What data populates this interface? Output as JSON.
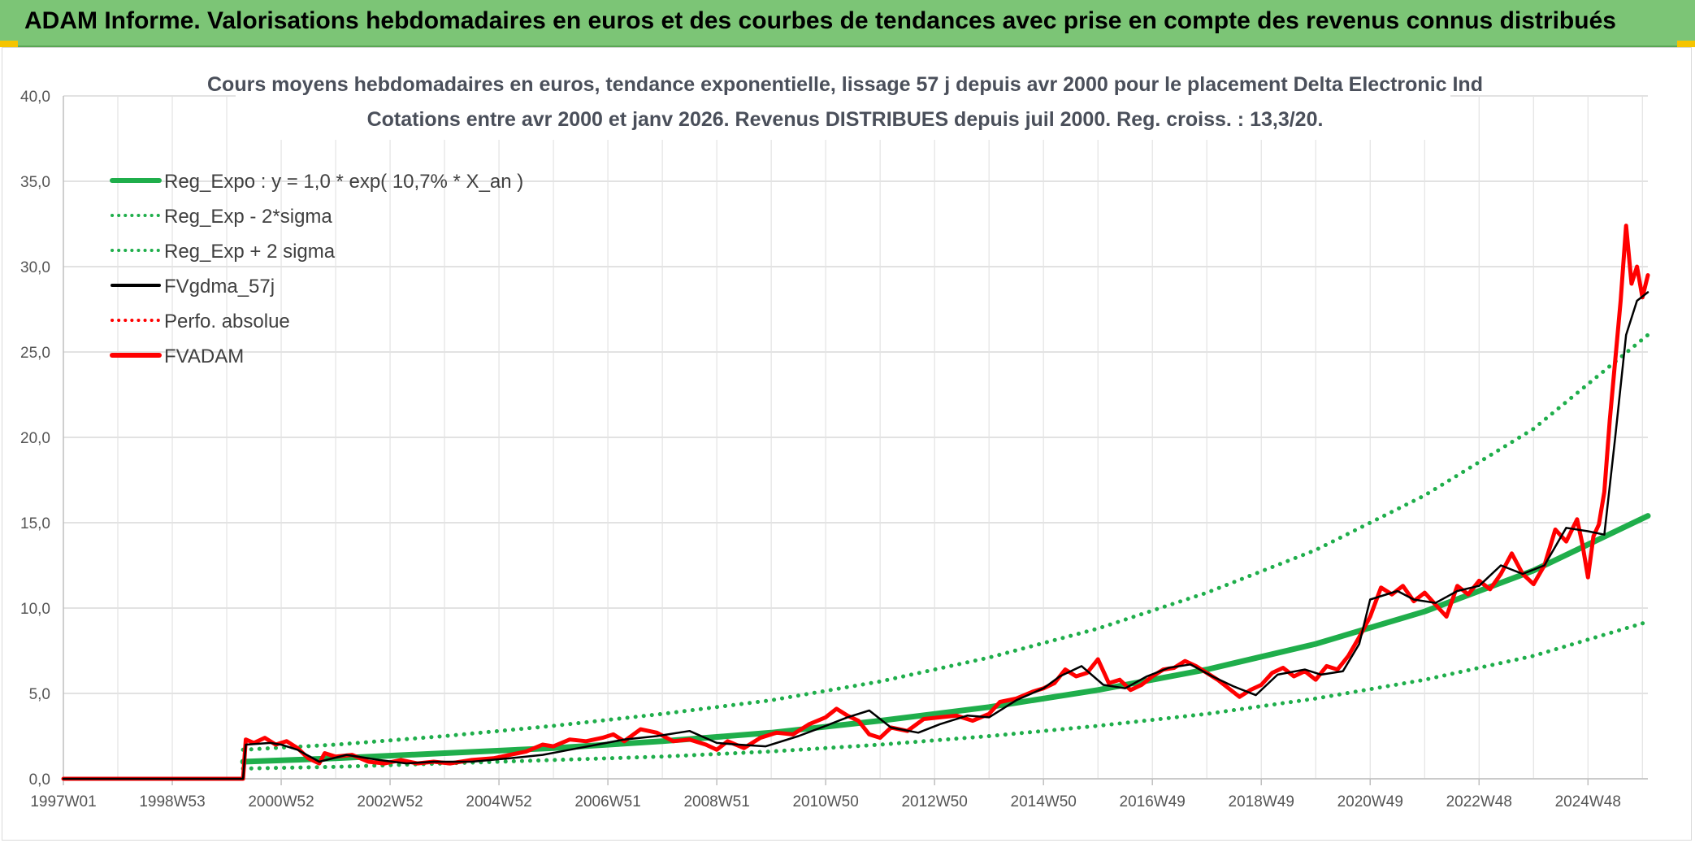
{
  "header": {
    "title": "ADAM Informe. Valorisations hebdomadaires en euros et des courbes de tendances avec prise en compte des revenus connus distribués"
  },
  "colors": {
    "header_bg": "#7cc576",
    "corner_accent": "#f5c400",
    "reg_expo": "#1fae4b",
    "fvgdma": "#000000",
    "fvadam": "#ff0000"
  },
  "chart_data": {
    "type": "line",
    "title": "Cours moyens hebdomadaires en euros, tendance exponentielle, lissage 57 j depuis avr 2000 pour le placement Delta Electronic Ind",
    "subtitle": "Cotations entre avr 2000 et janv 2026. Revenus DISTRIBUES depuis juil 2000. Reg. croiss. : 13,3/20.",
    "xlabel": "",
    "ylabel": "",
    "ylim": [
      0,
      40
    ],
    "xlim": [
      1997.0,
      2026.1
    ],
    "grid": true,
    "legend_position": "top-left",
    "y_ticks": [
      "0,0",
      "5,0",
      "10,0",
      "15,0",
      "20,0",
      "25,0",
      "30,0",
      "35,0",
      "40,0"
    ],
    "x_ticks": [
      {
        "label": "1997W01",
        "x": 1997.0
      },
      {
        "label": "1998W53",
        "x": 1999.0
      },
      {
        "label": "2000W52",
        "x": 2001.0
      },
      {
        "label": "2002W52",
        "x": 2003.0
      },
      {
        "label": "2004W52",
        "x": 2005.0
      },
      {
        "label": "2006W51",
        "x": 2007.0
      },
      {
        "label": "2008W51",
        "x": 2009.0
      },
      {
        "label": "2010W50",
        "x": 2011.0
      },
      {
        "label": "2012W50",
        "x": 2013.0
      },
      {
        "label": "2014W50",
        "x": 2015.0
      },
      {
        "label": "2016W49",
        "x": 2017.0
      },
      {
        "label": "2018W49",
        "x": 2019.0
      },
      {
        "label": "2020W49",
        "x": 2021.0
      },
      {
        "label": "2022W48",
        "x": 2023.0
      },
      {
        "label": "2024W48",
        "x": 2025.0
      }
    ],
    "series": [
      {
        "name": "Reg_Expo : y = 1,0 * exp( 10,7% *  X_an )",
        "color": "#1fae4b",
        "style": "solid-thick",
        "x": [
          2000.3,
          2002,
          2004,
          2006,
          2008,
          2010,
          2012,
          2014,
          2016,
          2018,
          2020,
          2022,
          2024,
          2026.1
        ],
        "y": [
          1.0,
          1.2,
          1.5,
          1.8,
          2.2,
          2.7,
          3.4,
          4.2,
          5.2,
          6.4,
          7.9,
          9.8,
          12.2,
          15.4
        ]
      },
      {
        "name": "Reg_Exp - 2*sigma",
        "color": "#1fae4b",
        "style": "dotted",
        "x": [
          2000.3,
          2002,
          2004,
          2006,
          2008,
          2010,
          2012,
          2014,
          2016,
          2018,
          2020,
          2022,
          2024,
          2026.1
        ],
        "y": [
          0.6,
          0.7,
          0.9,
          1.1,
          1.3,
          1.6,
          2.0,
          2.5,
          3.1,
          3.8,
          4.7,
          5.8,
          7.2,
          9.2
        ]
      },
      {
        "name": "Reg_Exp + 2 sigma",
        "color": "#1fae4b",
        "style": "dotted",
        "x": [
          2000.3,
          2002,
          2004,
          2006,
          2008,
          2010,
          2012,
          2014,
          2016,
          2018,
          2020,
          2022,
          2024,
          2026.1
        ],
        "y": [
          1.7,
          2.0,
          2.5,
          3.1,
          3.8,
          4.6,
          5.7,
          7.1,
          8.8,
          10.9,
          13.4,
          16.6,
          20.5,
          26.0
        ]
      },
      {
        "name": "FVgdma_57j",
        "color": "#000000",
        "style": "solid-thin",
        "x": [
          1997.0,
          2000.3,
          2000.35,
          2000.8,
          2001.0,
          2001.3,
          2001.7,
          2002.2,
          2002.8,
          2003.3,
          2003.8,
          2004.5,
          2005.2,
          2005.8,
          2006.3,
          2006.8,
          2007.3,
          2007.9,
          2008.5,
          2009.0,
          2009.4,
          2009.9,
          2010.5,
          2011.0,
          2011.4,
          2011.8,
          2012.2,
          2012.7,
          2013.1,
          2013.6,
          2014.0,
          2014.5,
          2015.0,
          2015.3,
          2015.7,
          2016.1,
          2016.5,
          2016.9,
          2017.3,
          2017.7,
          2018.1,
          2018.5,
          2018.9,
          2019.3,
          2019.8,
          2020.1,
          2020.5,
          2020.8,
          2021.0,
          2021.5,
          2021.8,
          2022.2,
          2022.6,
          2023.0,
          2023.4,
          2023.8,
          2024.2,
          2024.6,
          2025.0,
          2025.3,
          2025.5,
          2025.7,
          2025.9,
          2026.1
        ],
        "y": [
          0.0,
          0.0,
          2.0,
          2.1,
          2.0,
          1.7,
          1.0,
          1.4,
          1.1,
          0.9,
          1.0,
          1.0,
          1.2,
          1.4,
          1.7,
          2.0,
          2.3,
          2.5,
          2.8,
          2.1,
          2.0,
          1.9,
          2.5,
          3.1,
          3.6,
          4.0,
          3.0,
          2.7,
          3.2,
          3.7,
          3.6,
          4.6,
          5.3,
          6.0,
          6.6,
          5.5,
          5.3,
          6.0,
          6.5,
          6.7,
          6.0,
          5.4,
          4.9,
          6.1,
          6.4,
          6.1,
          6.3,
          7.9,
          10.5,
          11.0,
          10.5,
          10.3,
          11.0,
          11.3,
          12.5,
          12.0,
          12.5,
          14.7,
          14.5,
          14.3,
          20.0,
          26.0,
          28.0,
          28.5
        ]
      },
      {
        "name": "Perfo. absolue",
        "color": "#ff0000",
        "style": "dotted",
        "x": [],
        "y": []
      },
      {
        "name": "FVADAM",
        "color": "#ff0000",
        "style": "solid-thick",
        "x": [
          1997.0,
          2000.3,
          2000.35,
          2000.5,
          2000.7,
          2000.9,
          2001.1,
          2001.3,
          2001.5,
          2001.7,
          2001.8,
          2002.0,
          2002.3,
          2002.6,
          2002.9,
          2003.2,
          2003.5,
          2003.8,
          2004.1,
          2004.5,
          2004.9,
          2005.2,
          2005.5,
          2005.8,
          2006.0,
          2006.3,
          2006.6,
          2006.9,
          2007.1,
          2007.3,
          2007.6,
          2007.9,
          2008.2,
          2008.5,
          2008.8,
          2009.0,
          2009.2,
          2009.5,
          2009.8,
          2010.1,
          2010.4,
          2010.7,
          2011.0,
          2011.2,
          2011.4,
          2011.6,
          2011.8,
          2012.0,
          2012.2,
          2012.5,
          2012.8,
          2013.1,
          2013.4,
          2013.7,
          2014.0,
          2014.2,
          2014.5,
          2014.8,
          2015.0,
          2015.2,
          2015.4,
          2015.6,
          2015.8,
          2016.0,
          2016.2,
          2016.4,
          2016.6,
          2016.8,
          2017.0,
          2017.2,
          2017.4,
          2017.6,
          2017.8,
          2018.0,
          2018.2,
          2018.4,
          2018.6,
          2018.8,
          2019.0,
          2019.2,
          2019.4,
          2019.6,
          2019.8,
          2020.0,
          2020.2,
          2020.4,
          2020.6,
          2020.8,
          2021.0,
          2021.2,
          2021.4,
          2021.6,
          2021.8,
          2022.0,
          2022.2,
          2022.4,
          2022.6,
          2022.8,
          2023.0,
          2023.2,
          2023.4,
          2023.6,
          2023.8,
          2024.0,
          2024.2,
          2024.4,
          2024.6,
          2024.8,
          2024.9,
          2025.0,
          2025.1,
          2025.2,
          2025.3,
          2025.4,
          2025.5,
          2025.6,
          2025.7,
          2025.8,
          2025.9,
          2026.0,
          2026.1
        ],
        "y": [
          0.0,
          0.0,
          2.3,
          2.1,
          2.4,
          2.0,
          2.2,
          1.8,
          1.2,
          0.9,
          1.5,
          1.3,
          1.4,
          1.0,
          0.9,
          1.1,
          0.9,
          1.0,
          0.9,
          1.1,
          1.2,
          1.4,
          1.6,
          2.0,
          1.9,
          2.3,
          2.2,
          2.4,
          2.6,
          2.2,
          2.9,
          2.7,
          2.2,
          2.3,
          2.0,
          1.7,
          2.2,
          1.8,
          2.4,
          2.7,
          2.6,
          3.2,
          3.6,
          4.1,
          3.7,
          3.4,
          2.6,
          2.4,
          3.0,
          2.8,
          3.5,
          3.6,
          3.7,
          3.4,
          3.8,
          4.5,
          4.7,
          5.1,
          5.3,
          5.6,
          6.4,
          6.0,
          6.2,
          7.0,
          5.6,
          5.8,
          5.2,
          5.5,
          6.0,
          6.4,
          6.5,
          6.9,
          6.6,
          6.2,
          5.8,
          5.3,
          4.8,
          5.2,
          5.5,
          6.2,
          6.5,
          6.0,
          6.3,
          5.8,
          6.6,
          6.4,
          7.2,
          8.3,
          9.5,
          11.2,
          10.8,
          11.3,
          10.4,
          10.9,
          10.2,
          9.5,
          11.3,
          10.8,
          11.6,
          11.1,
          12.0,
          13.2,
          12.0,
          11.4,
          12.5,
          14.6,
          13.9,
          15.2,
          13.7,
          11.8,
          14.2,
          14.9,
          16.8,
          21.0,
          24.5,
          28.0,
          32.4,
          29.0,
          30.0,
          28.2,
          29.5
        ]
      }
    ]
  }
}
